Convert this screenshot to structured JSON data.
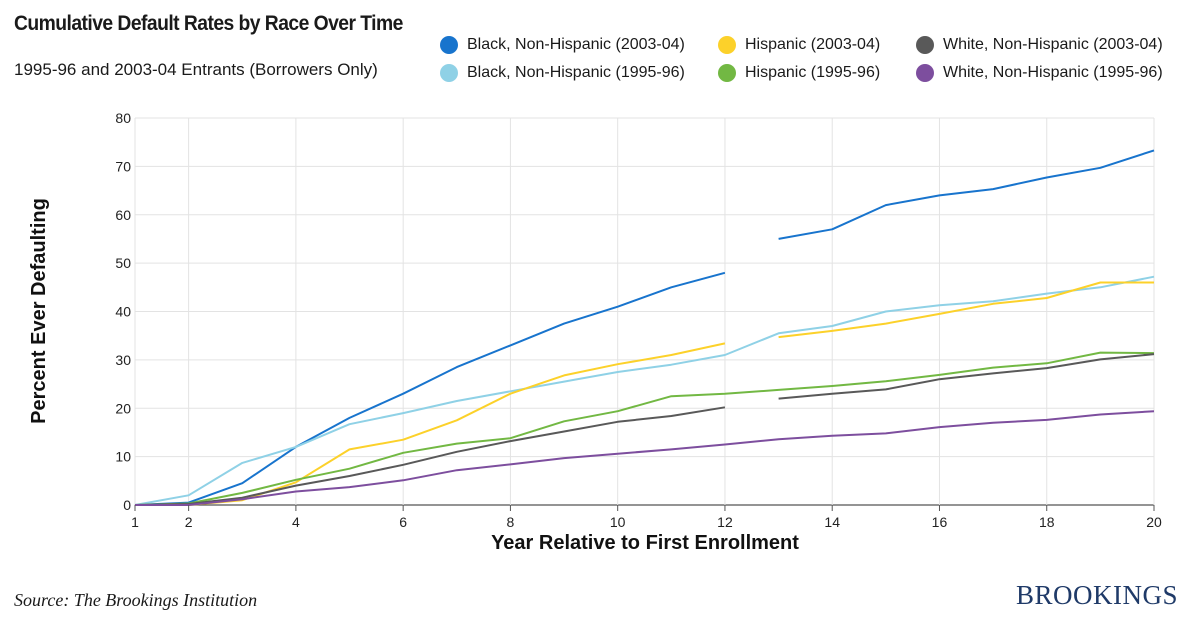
{
  "chart_data": {
    "type": "line",
    "title": "Cumulative Default Rates by Race Over Time",
    "subtitle": "1995-96 and 2003-04 Entrants (Borrowers Only)",
    "xlabel": "Year Relative to First Enrollment",
    "ylabel": "Percent Ever Defaulting",
    "xlim": [
      1,
      20
    ],
    "ylim": [
      0,
      80
    ],
    "xticks": [
      1,
      2,
      4,
      6,
      8,
      10,
      12,
      14,
      16,
      18,
      20
    ],
    "yticks": [
      0,
      10,
      20,
      30,
      40,
      50,
      60,
      70,
      80
    ],
    "grid": true,
    "legend_position": "top-right",
    "series": [
      {
        "name": "Black, Non-Hispanic (2003-04)",
        "color": "#1874cd",
        "x": [
          1,
          2,
          3,
          4,
          5,
          6,
          7,
          8,
          9,
          10,
          11,
          12,
          null,
          13,
          14,
          15,
          16,
          17,
          18,
          19,
          20
        ],
        "values": [
          0,
          0.5,
          4.5,
          12,
          18,
          23,
          28.5,
          33,
          37.5,
          41,
          45,
          48,
          null,
          55,
          57,
          62,
          64,
          65.3,
          67.7,
          69.7,
          73.3
        ]
      },
      {
        "name": "Black, Non-Hispanic (1995-96)",
        "color": "#8fd1e6",
        "x": [
          1,
          2,
          3,
          4,
          5,
          6,
          7,
          8,
          9,
          10,
          11,
          12,
          13,
          14,
          15,
          16,
          17,
          18,
          19,
          20
        ],
        "values": [
          0,
          2,
          8.7,
          12,
          16.7,
          19,
          21.5,
          23.5,
          25.5,
          27.5,
          29,
          31,
          35.5,
          37,
          40,
          41.3,
          42.1,
          43.7,
          45,
          47.2
        ]
      },
      {
        "name": "Hispanic (2003-04)",
        "color": "#fcd12a",
        "x": [
          1,
          2,
          3,
          4,
          5,
          6,
          7,
          8,
          9,
          10,
          11,
          12,
          null,
          13,
          14,
          15,
          16,
          17,
          18,
          19,
          20
        ],
        "values": [
          0,
          0,
          1,
          4.7,
          11.5,
          13.5,
          17.5,
          23,
          26.8,
          29.1,
          31,
          33.4,
          null,
          34.7,
          36,
          37.5,
          39.5,
          41.6,
          42.8,
          46,
          46
        ]
      },
      {
        "name": "Hispanic (1995-96)",
        "color": "#72b843",
        "x": [
          1,
          2,
          3,
          4,
          5,
          6,
          7,
          8,
          9,
          10,
          11,
          12,
          13,
          14,
          15,
          16,
          17,
          18,
          19,
          20
        ],
        "values": [
          0,
          0.3,
          2.5,
          5.2,
          7.5,
          10.8,
          12.7,
          13.8,
          17.3,
          19.4,
          22.5,
          23,
          23.8,
          24.6,
          25.6,
          26.9,
          28.4,
          29.3,
          31.5,
          31.4
        ]
      },
      {
        "name": "White, Non-Hispanic (2003-04)",
        "color": "#595959",
        "x": [
          1,
          2,
          3,
          4,
          5,
          6,
          7,
          8,
          9,
          10,
          11,
          12,
          null,
          13,
          14,
          15,
          16,
          17,
          18,
          19,
          20
        ],
        "values": [
          0,
          0.2,
          1.5,
          4,
          6,
          8.3,
          11,
          13.2,
          15.2,
          17.2,
          18.4,
          20.2,
          null,
          22,
          23,
          23.9,
          26,
          27.2,
          28.3,
          30.1,
          31.2
        ]
      },
      {
        "name": "White, Non-Hispanic (1995-96)",
        "color": "#7d4e9e",
        "x": [
          1,
          2,
          3,
          4,
          5,
          6,
          7,
          8,
          9,
          10,
          11,
          12,
          13,
          14,
          15,
          16,
          17,
          18,
          19,
          20
        ],
        "values": [
          0,
          0,
          1.2,
          2.8,
          3.7,
          5.1,
          7.2,
          8.4,
          9.7,
          10.6,
          11.5,
          12.5,
          13.6,
          14.3,
          14.8,
          16.1,
          17,
          17.6,
          18.7,
          19.4
        ]
      }
    ]
  },
  "footer": {
    "source": "Source: The Brookings Institution",
    "brand": "BROOKINGS"
  }
}
